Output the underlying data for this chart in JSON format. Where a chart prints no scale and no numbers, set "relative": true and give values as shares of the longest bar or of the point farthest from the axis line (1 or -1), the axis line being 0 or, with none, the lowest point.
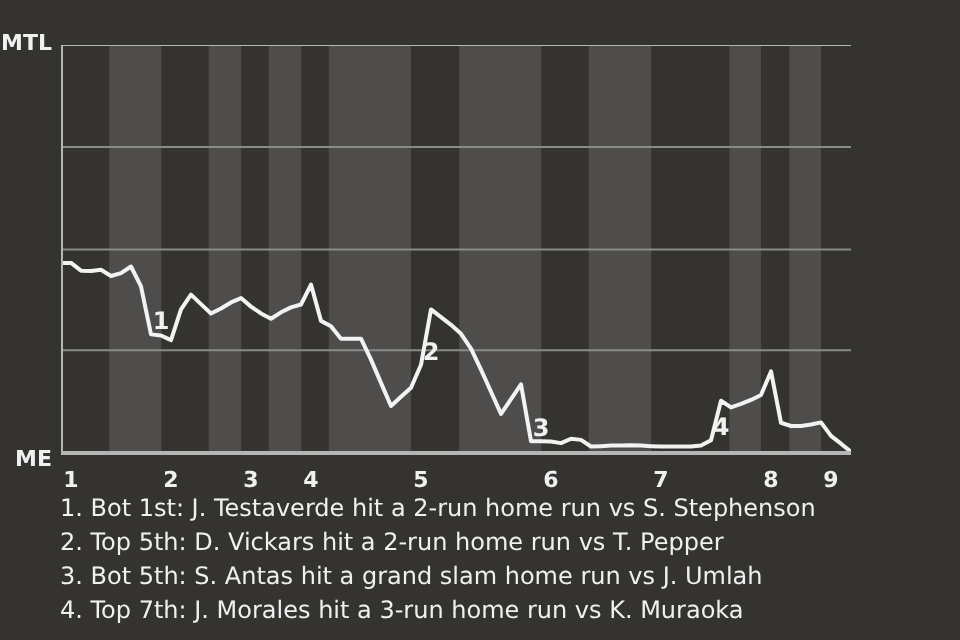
{
  "chart_data": {
    "type": "line",
    "relative": true,
    "categories": [
      null,
      "1",
      null,
      null,
      null,
      null,
      null,
      null,
      null,
      null,
      null,
      "2",
      null,
      null,
      null,
      null,
      null,
      null,
      null,
      "3",
      null,
      null,
      null,
      null,
      null,
      "4",
      null,
      null,
      null,
      null,
      null,
      null,
      null,
      null,
      null,
      null,
      "5",
      null,
      null,
      null,
      null,
      null,
      null,
      null,
      null,
      null,
      null,
      null,
      null,
      "6",
      null,
      null,
      null,
      null,
      null,
      null,
      null,
      null,
      null,
      null,
      "7",
      null,
      null,
      null,
      null,
      null,
      null,
      null,
      null,
      null,
      null,
      "8",
      null,
      null,
      null,
      null,
      null,
      "9",
      null,
      null
    ],
    "series": [
      {
        "color": "#f2f2f2",
        "values": [
          1.0,
          1.0,
          0.959,
          0.957,
          0.964,
          0.931,
          0.946,
          0.981,
          0.876,
          0.624,
          0.618,
          0.594,
          0.755,
          0.833,
          0.783,
          0.734,
          0.76,
          0.792,
          0.815,
          0.77,
          0.734,
          0.706,
          0.74,
          0.766,
          0.781,
          0.886,
          0.695,
          0.667,
          0.601,
          0.601,
          0.601,
          0.491,
          0.369,
          0.247,
          0.296,
          0.343,
          0.464,
          0.755,
          0.715,
          0.674,
          0.627,
          0.549,
          0.438,
          0.322,
          0.206,
          0.283,
          0.361,
          0.062,
          0.062,
          0.06,
          0.052,
          0.075,
          0.069,
          0.034,
          0.036,
          0.039,
          0.039,
          0.041,
          0.039,
          0.036,
          0.034,
          0.034,
          0.034,
          0.034,
          0.039,
          0.067,
          0.275,
          0.24,
          0.258,
          0.279,
          0.305,
          0.429,
          0.159,
          0.142,
          0.142,
          0.15,
          0.161,
          0.09,
          0.049,
          0.006
        ]
      }
    ],
    "marker": "none",
    "line_style": "solid",
    "ref_lines": [
      {
        "axis": "y",
        "value": 0.54,
        "color": "#8a8a88"
      },
      {
        "axis": "y",
        "value": 1.07,
        "color": "#8a8a88"
      },
      {
        "axis": "y",
        "value": 1.61,
        "color": "#8a8a88"
      }
    ],
    "annotations": [
      "MTL",
      "ME",
      {
        "text": "1",
        "y": 0.624
      },
      {
        "text": "2",
        "y": 0.464
      },
      {
        "text": "3",
        "y": 0.062
      },
      {
        "text": "4",
        "y": 0.067
      },
      "1. Bot 1st: J. Testaverde hit a 2-run home run vs S. Stephenson",
      "2. Top 5th: D. Vickars hit a 2-run home run vs T. Pepper",
      "3. Bot 5th: S. Antas hit a grand slam home run vs J. Umlah",
      "4. Top 7th: J. Morales hit a 3-run home run vs K. Muraoka"
    ]
  }
}
